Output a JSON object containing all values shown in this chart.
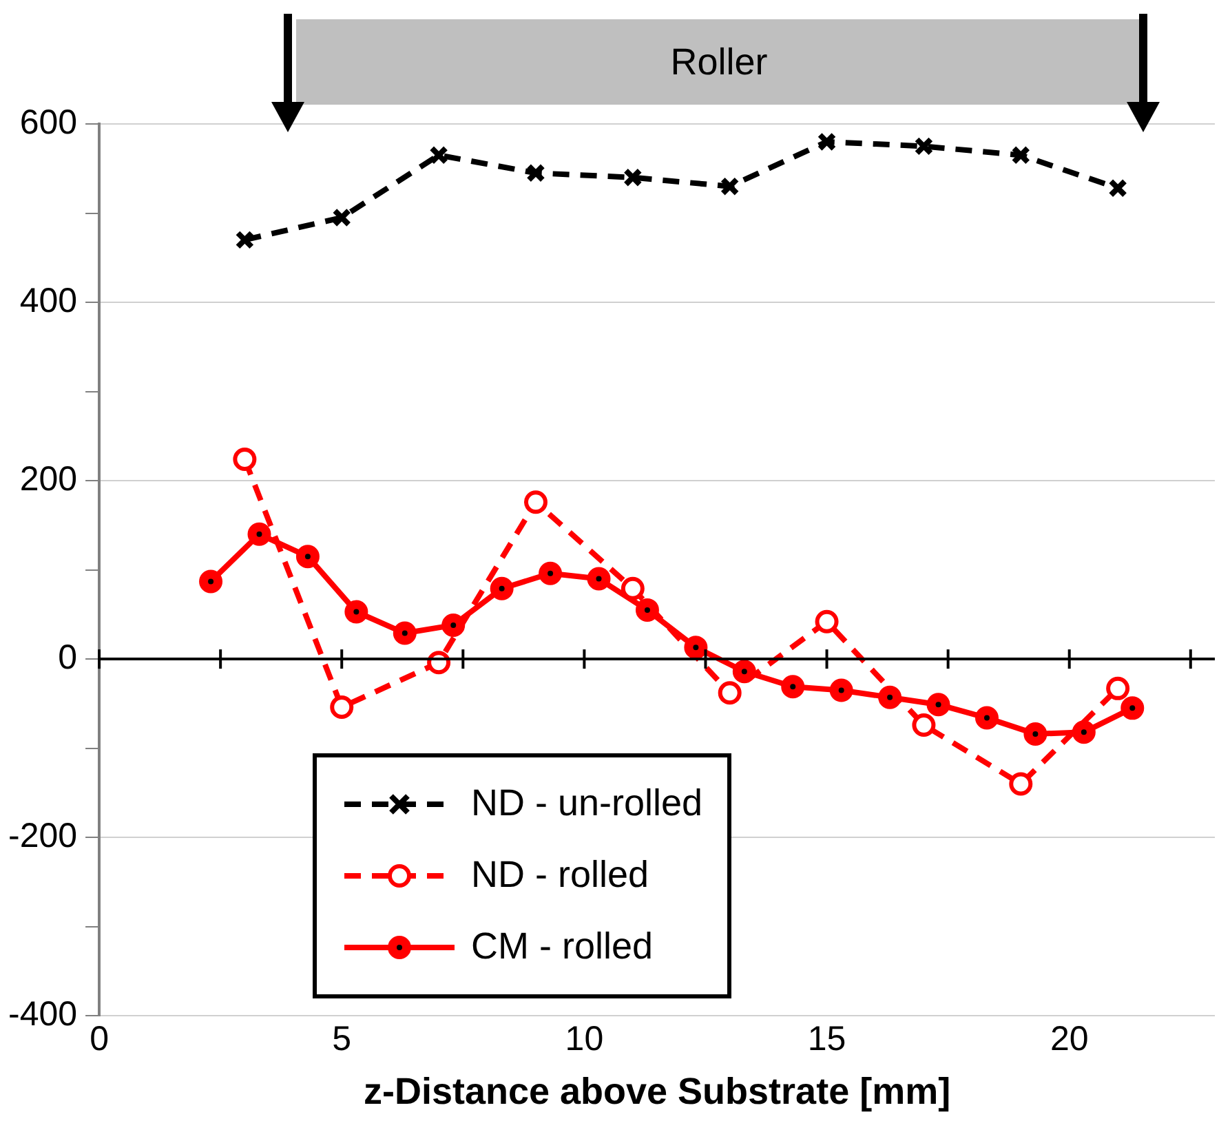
{
  "chart_data": {
    "type": "line",
    "xlabel": "z-Distance above Substrate [mm]",
    "xlim": [
      0,
      23
    ],
    "xticks": [
      0,
      {
        "value": 2.5,
        "label": null
      },
      5,
      {
        "value": 7.5,
        "label": null
      },
      10,
      {
        "value": 12.5,
        "label": null
      },
      15,
      {
        "value": 17.5,
        "label": null
      },
      20,
      {
        "value": 22.5,
        "label": null
      }
    ],
    "ylim": [
      -400,
      600
    ],
    "yticks": [
      -400,
      {
        "value": -300,
        "label": null
      },
      -200,
      {
        "value": -100,
        "label": null
      },
      0,
      {
        "value": 100,
        "label": null
      },
      200,
      {
        "value": 300,
        "label": null
      },
      400,
      {
        "value": 500,
        "label": null
      },
      600
    ],
    "grid": "y",
    "legend": "bottom",
    "annotations": [
      "Roller"
    ],
    "series": [
      {
        "name": "ND - un-rolled",
        "color": "#000000",
        "marker": "cross",
        "line_style": "dashed",
        "x": [
          3,
          5,
          7,
          9,
          11,
          13,
          15,
          17,
          19,
          21
        ],
        "values": [
          470,
          495,
          565,
          545,
          540,
          530,
          580,
          575,
          565,
          528
        ]
      },
      {
        "name": "ND - rolled",
        "color": "#ff0000",
        "marker": "circle",
        "line_style": "dashed",
        "x": [
          3,
          5,
          7,
          9,
          11,
          13,
          15,
          17,
          19,
          21
        ],
        "values": [
          224,
          -54,
          -4,
          176,
          79,
          -38,
          42,
          -74,
          -140,
          -33
        ]
      },
      {
        "name": "CM - rolled",
        "color": "#ff0000",
        "marker": "circle",
        "line_style": "solid",
        "x": [
          2.3,
          3.3,
          4.3,
          5.3,
          6.3,
          7.3,
          8.3,
          9.3,
          10.3,
          11.3,
          12.3,
          13.3,
          14.3,
          15.3,
          16.3,
          17.3,
          18.3,
          19.3,
          20.3,
          21.3
        ],
        "values": [
          87,
          140,
          115,
          53,
          29,
          38,
          79,
          96,
          90,
          55,
          13,
          -14,
          -31,
          -35,
          -43,
          -51,
          -66,
          -84,
          -82,
          -55
        ]
      }
    ]
  }
}
